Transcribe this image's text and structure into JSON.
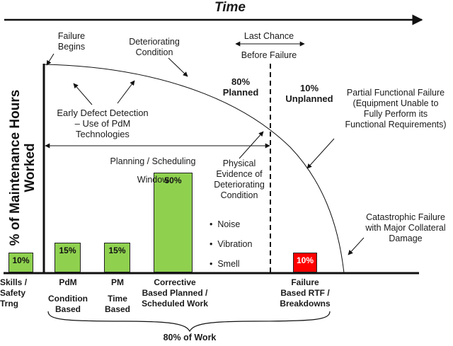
{
  "title": "Time",
  "y_axis_label": [
    "% of Maintenance Hours",
    "Worked"
  ],
  "colors": {
    "bar_green": "#8fd14f",
    "bar_red": "#ff0000",
    "line": "#111111"
  },
  "bars": [
    {
      "id": "skills",
      "value": 10,
      "label": "10%",
      "color": "#8fd14f"
    },
    {
      "id": "pdm",
      "value": 15,
      "label": "15%",
      "color": "#8fd14f"
    },
    {
      "id": "pm",
      "value": 15,
      "label": "15%",
      "color": "#8fd14f"
    },
    {
      "id": "corrective",
      "value": 50,
      "label": "50%",
      "color": "#8fd14f"
    },
    {
      "id": "failure",
      "value": 10,
      "label": "10%",
      "color": "#ff0000"
    }
  ],
  "x_labels": {
    "skills": [
      "Skills /",
      "Safety",
      "Trng"
    ],
    "pdm": [
      "PdM",
      "Condition",
      "Based"
    ],
    "pm": [
      "PM",
      "Time",
      "Based"
    ],
    "corrective": [
      "Corrective",
      "Based Planned /",
      "Scheduled Work"
    ],
    "failure": [
      "Failure",
      "Based RTF /",
      "Breakdowns"
    ]
  },
  "annotations": {
    "failure_begins": [
      "Failure",
      "Begins"
    ],
    "deteriorating": [
      "Deteriorating",
      "Condition"
    ],
    "last_chance": [
      "Last Chance",
      "Before Failure"
    ],
    "planned": [
      "80%",
      "Planned"
    ],
    "unplanned": [
      "10%",
      "Unplanned"
    ],
    "partial_failure": [
      "Partial Functional Failure",
      "(Equipment Unable to",
      "Fully Perform its",
      "Functional Requirements)"
    ],
    "early_detection": [
      "Early Defect Detection",
      "– Use of PdM",
      "Technologies"
    ],
    "planning_window": [
      "Planning / Scheduling",
      "Window"
    ],
    "physical_evidence": [
      "Physical",
      "Evidence of",
      "Deteriorating",
      "Condition"
    ],
    "evidence_items": [
      "Noise",
      "Vibration",
      "Smell"
    ],
    "catastrophic": [
      "Catastrophic Failure",
      "with Major Collateral",
      "Damage"
    ],
    "work_80": "80% of Work"
  }
}
